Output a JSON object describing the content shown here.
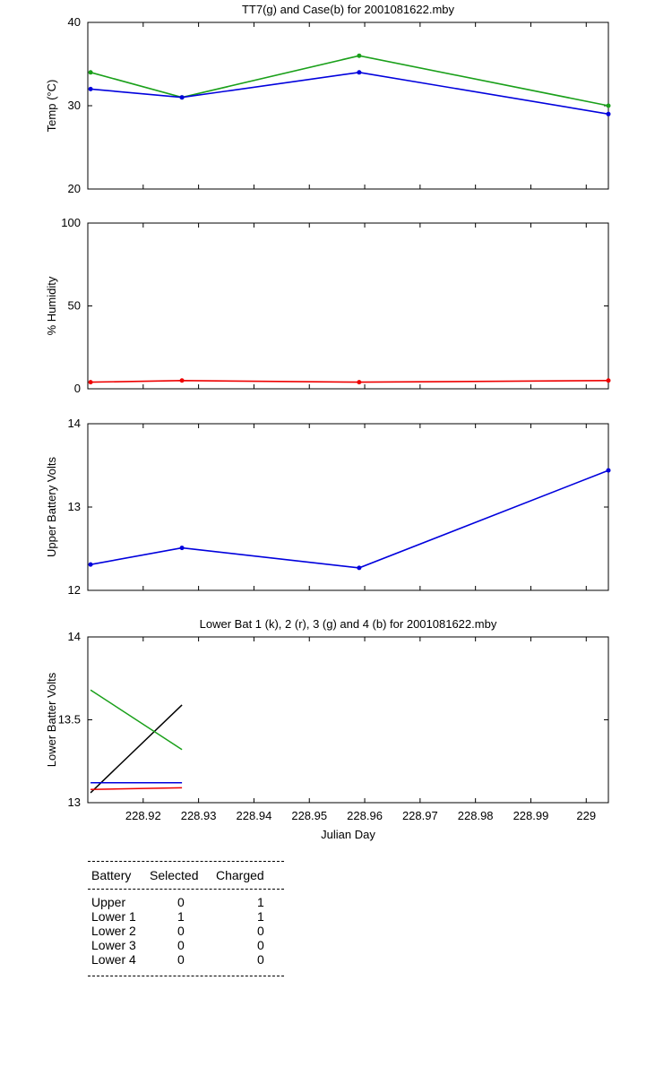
{
  "chart_data": [
    {
      "type": "line",
      "title": "TT7(g) and Case(b) for 2001081622.mby",
      "xlabel": "",
      "ylabel": "Temp (°C)",
      "xlim": [
        228.91,
        229.004
      ],
      "ylim": [
        20,
        40
      ],
      "yticks": [
        "20",
        "30",
        "40"
      ],
      "grid": false,
      "series": [
        {
          "color": "#1aa01a",
          "x": [
            228.9105,
            228.927,
            228.959,
            229.004
          ],
          "y": [
            34,
            31,
            36,
            30
          ]
        },
        {
          "color": "#0000dd",
          "x": [
            228.9105,
            228.927,
            228.959,
            229.004
          ],
          "y": [
            32,
            31,
            34,
            29
          ]
        }
      ]
    },
    {
      "type": "line",
      "title": "",
      "xlabel": "",
      "ylabel": "% Humidity",
      "xlim": [
        228.91,
        229.004
      ],
      "ylim": [
        0,
        100
      ],
      "yticks": [
        "0",
        "50",
        "100"
      ],
      "grid": false,
      "series": [
        {
          "color": "#ee0000",
          "x": [
            228.9105,
            228.927,
            228.959,
            229.004
          ],
          "y": [
            4,
            5,
            4,
            5
          ]
        }
      ]
    },
    {
      "type": "line",
      "title": "",
      "xlabel": "",
      "ylabel": "Upper Battery Volts",
      "xlim": [
        228.91,
        229.004
      ],
      "ylim": [
        12,
        14
      ],
      "yticks": [
        "12",
        "13",
        "14"
      ],
      "grid": false,
      "series": [
        {
          "color": "#0000dd",
          "x": [
            228.9105,
            228.927,
            228.959,
            229.004
          ],
          "y": [
            12.31,
            12.51,
            12.27,
            13.44
          ]
        }
      ]
    },
    {
      "type": "line",
      "title": "Lower Bat 1 (k), 2 (r), 3 (g) and 4 (b) for 2001081622.mby",
      "xlabel": "Julian Day",
      "ylabel": "Lower Batter Volts",
      "xlim": [
        228.91,
        229.004
      ],
      "ylim": [
        13,
        14
      ],
      "yticks": [
        "13",
        "13.5",
        "14"
      ],
      "xticks": [
        {
          "value": 228.92,
          "label": "228.92"
        },
        {
          "value": 228.93,
          "label": "228.93"
        },
        {
          "value": 228.94,
          "label": "228.94"
        },
        {
          "value": 228.95,
          "label": "228.95"
        },
        {
          "value": 228.96,
          "label": "228.96"
        },
        {
          "value": 228.97,
          "label": "228.97"
        },
        {
          "value": 228.98,
          "label": "228.98"
        },
        {
          "value": 228.99,
          "label": "228.99"
        },
        {
          "value": 229.0,
          "label": "229"
        }
      ],
      "grid": false,
      "series": [
        {
          "color": "#000000",
          "x": [
            228.9105,
            228.927
          ],
          "y": [
            13.06,
            13.59
          ]
        },
        {
          "color": "#ee0000",
          "x": [
            228.9105,
            228.927
          ],
          "y": [
            13.08,
            13.09
          ]
        },
        {
          "color": "#1aa01a",
          "x": [
            228.9105,
            228.927
          ],
          "y": [
            13.68,
            13.32
          ]
        },
        {
          "color": "#0000dd",
          "x": [
            228.9105,
            228.927
          ],
          "y": [
            13.12,
            13.12
          ]
        }
      ]
    }
  ],
  "battery_table": {
    "headers": [
      "Battery",
      "Selected",
      "Charged"
    ],
    "rows": [
      {
        "battery": "Upper",
        "selected": "0",
        "charged": "1"
      },
      {
        "battery": "Lower 1",
        "selected": "1",
        "charged": "1"
      },
      {
        "battery": "Lower 2",
        "selected": "0",
        "charged": "0"
      },
      {
        "battery": "Lower 3",
        "selected": "0",
        "charged": "0"
      },
      {
        "battery": "Lower 4",
        "selected": "0",
        "charged": "0"
      }
    ]
  }
}
